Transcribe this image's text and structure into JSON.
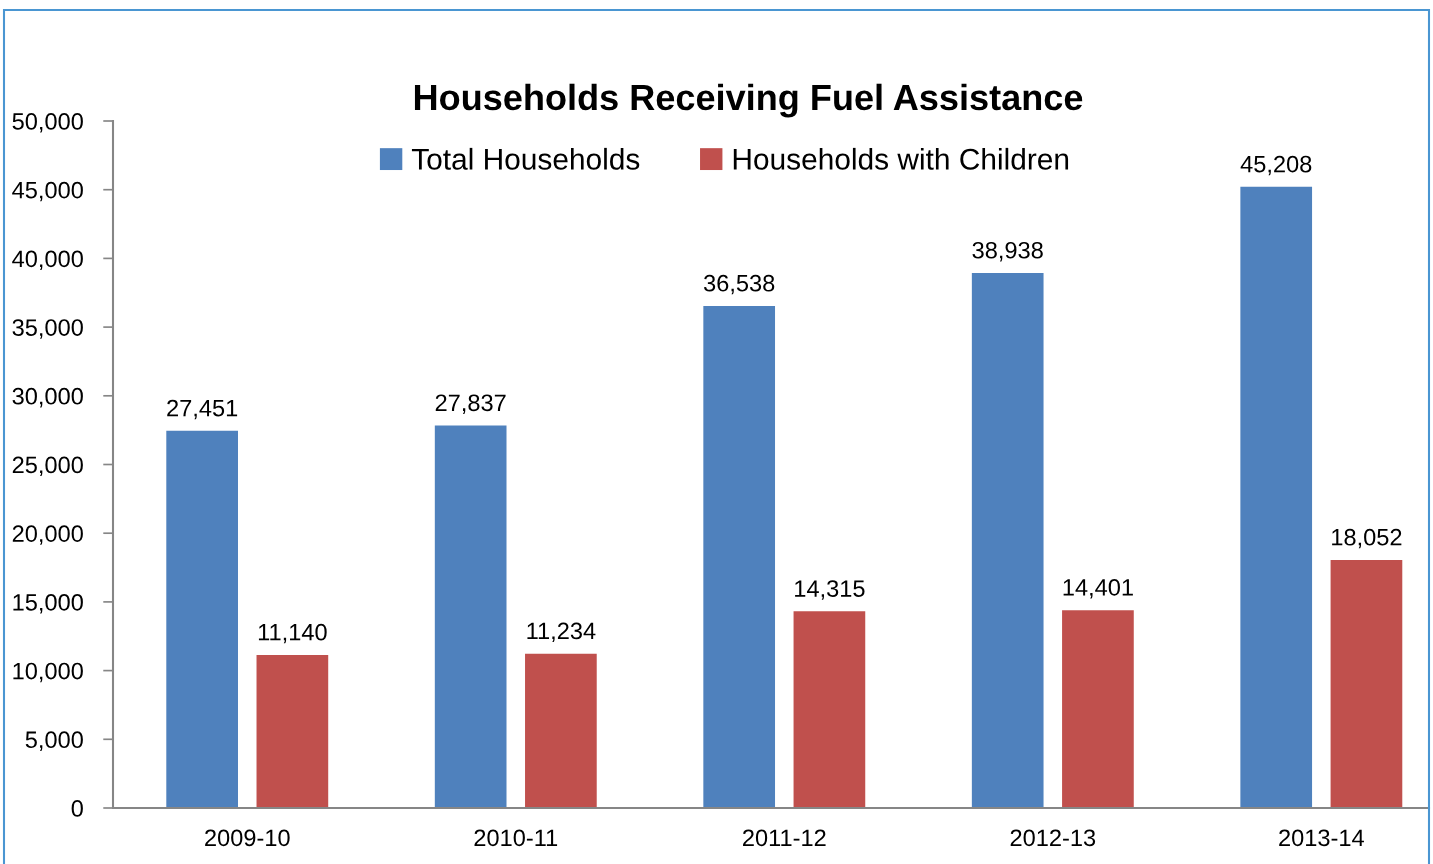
{
  "chart_data": {
    "type": "bar",
    "title": "Households Receiving Fuel Assistance",
    "categories": [
      "2009-10",
      "2010-11",
      "2011-12",
      "2012-13",
      "2013-14"
    ],
    "series": [
      {
        "name": "Total Households",
        "color": "#4f81bd",
        "values": [
          27451,
          27837,
          36538,
          38938,
          45208
        ],
        "value_labels": [
          "27,451",
          "27,837",
          "36,538",
          "38,938",
          "45,208"
        ]
      },
      {
        "name": "Households with Children",
        "color": "#c0504d",
        "values": [
          11140,
          11234,
          14315,
          14401,
          18052
        ],
        "value_labels": [
          "11,140",
          "11,234",
          "14,315",
          "14,401",
          "18,052"
        ]
      }
    ],
    "ylim": [
      0,
      50000
    ],
    "yticks": [
      0,
      {
        "value": 5000,
        "label": "5,000"
      },
      {
        "value": 10000,
        "label": "10,000"
      },
      {
        "value": 15000,
        "label": "15,000"
      },
      {
        "value": 20000,
        "label": "20,000"
      },
      {
        "value": 25000,
        "label": "25,000"
      },
      {
        "value": 30000,
        "label": "30,000"
      },
      {
        "value": 35000,
        "label": "35,000"
      },
      {
        "value": 40000,
        "label": "40,000"
      },
      {
        "value": 45000,
        "label": "45,000"
      },
      {
        "value": 50000,
        "label": "50,000"
      }
    ],
    "legend": "top"
  }
}
